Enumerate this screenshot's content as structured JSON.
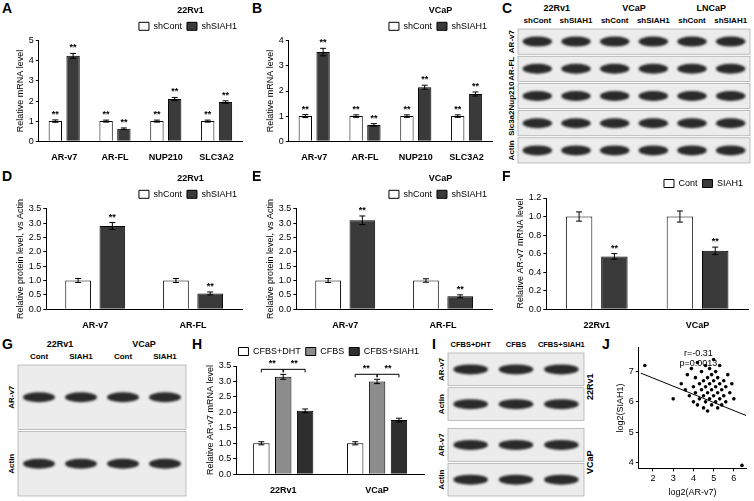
{
  "chart_data": [
    {
      "type": "bar",
      "panel": "A",
      "legend_title": "22Rv1",
      "legend": "top-right",
      "grid": false,
      "categories": [
        "AR-v7",
        "AR-FL",
        "NUP210",
        "SLC3A2"
      ],
      "ylabel": "Relative mRNA level",
      "ylim": [
        0,
        5
      ],
      "yticks": [
        0,
        1,
        2,
        3,
        4,
        5
      ],
      "series": [
        {
          "name": "shCont",
          "color": "#ffffff",
          "values": [
            1,
            1,
            1,
            1
          ],
          "errors": [
            0.06,
            0.05,
            0.05,
            0.05
          ],
          "annotations": [
            "**",
            "**",
            "**",
            "**"
          ]
        },
        {
          "name": "shSIAH1",
          "color": "#3a3a3a",
          "values": [
            4.25,
            0.62,
            2.1,
            1.95
          ],
          "errors": [
            0.12,
            0.04,
            0.08,
            0.06
          ],
          "annotations": [
            "**",
            "**",
            "**",
            "**"
          ]
        }
      ]
    },
    {
      "type": "bar",
      "panel": "B",
      "legend_title": "VCaP",
      "legend": "top-right",
      "grid": false,
      "categories": [
        "AR-v7",
        "AR-FL",
        "NUP210",
        "SLC3A2"
      ],
      "ylabel": "Relative mRNA level",
      "ylim": [
        0,
        4
      ],
      "yticks": [
        0,
        1,
        2,
        3,
        4
      ],
      "series": [
        {
          "name": "shCont",
          "color": "#ffffff",
          "values": [
            1,
            1,
            1,
            1
          ],
          "errors": [
            0.06,
            0.05,
            0.05,
            0.05
          ],
          "annotations": [
            "**",
            "**",
            "**",
            "**"
          ]
        },
        {
          "name": "shSIAH1",
          "color": "#3a3a3a",
          "values": [
            3.55,
            0.65,
            2.15,
            1.88
          ],
          "errors": [
            0.15,
            0.05,
            0.08,
            0.08
          ],
          "annotations": [
            "**",
            "**",
            "**",
            "**"
          ]
        }
      ]
    },
    {
      "type": "bar",
      "panel": "D",
      "legend_title": "22Rv1",
      "legend": "top-right",
      "grid": false,
      "categories": [
        "AR-v7",
        "AR-FL"
      ],
      "ylabel": "Relative protein level, vs Actin",
      "ylim": [
        0,
        3.5
      ],
      "yticks": [
        {
          "value": 0,
          "label": "0.0"
        },
        0.5,
        {
          "value": 1,
          "label": "1.0"
        },
        1.5,
        {
          "value": 2,
          "label": "2.0"
        },
        2.5,
        {
          "value": 3,
          "label": "3.0"
        },
        3.5
      ],
      "series": [
        {
          "name": "shCont",
          "color": "#ffffff",
          "values": [
            1,
            1
          ],
          "errors": [
            0.07,
            0.07
          ]
        },
        {
          "name": "shSIAH1",
          "color": "#3a3a3a",
          "values": [
            2.9,
            0.55
          ],
          "errors": [
            0.12,
            0.05
          ],
          "annotations": [
            "**",
            "**"
          ]
        }
      ]
    },
    {
      "type": "bar",
      "panel": "E",
      "legend_title": "VCaP",
      "legend": "top-right",
      "grid": false,
      "categories": [
        "AR-v7",
        "AR-FL"
      ],
      "ylabel": "Relative protein level, vs Actin",
      "ylim": [
        0,
        3.5
      ],
      "yticks": [
        {
          "value": 0,
          "label": "0.0"
        },
        0.5,
        {
          "value": 1,
          "label": "1.0"
        },
        1.5,
        {
          "value": 2,
          "label": "2.0"
        },
        2.5,
        {
          "value": 3,
          "label": "3.0"
        },
        3.5
      ],
      "series": [
        {
          "name": "shCont",
          "color": "#ffffff",
          "values": [
            1,
            1
          ],
          "errors": [
            0.07,
            0.06
          ]
        },
        {
          "name": "shSIAH1",
          "color": "#3a3a3a",
          "values": [
            3.1,
            0.45
          ],
          "errors": [
            0.15,
            0.05
          ],
          "annotations": [
            "**",
            "**"
          ]
        }
      ]
    },
    {
      "type": "bar",
      "panel": "F",
      "legend": "top-right",
      "grid": false,
      "categories": [
        "22Rv1",
        "VCaP"
      ],
      "ylabel": "Relative AR-v7 mRNA level",
      "ylim": [
        0,
        1.2
      ],
      "yticks": [
        {
          "value": 0,
          "label": "0.0"
        },
        0.2,
        0.4,
        0.6,
        0.8,
        {
          "value": 1,
          "label": "1.0"
        },
        1.2
      ],
      "series": [
        {
          "name": "Cont",
          "color": "#ffffff",
          "values": [
            1,
            1
          ],
          "errors": [
            0.05,
            0.06
          ]
        },
        {
          "name": "SIAH1",
          "color": "#3a3a3a",
          "values": [
            0.57,
            0.63
          ],
          "errors": [
            0.03,
            0.04
          ],
          "annotations": [
            "**",
            "**"
          ]
        }
      ]
    },
    {
      "type": "bar",
      "panel": "H",
      "legend": "top-right",
      "grid": false,
      "categories": [
        "22Rv1",
        "VCaP"
      ],
      "ylabel": "Relative AR-v7 mRNA level",
      "ylim": [
        0,
        3.5
      ],
      "yticks": [
        {
          "value": 0,
          "label": "0.0"
        },
        0.5,
        {
          "value": 1,
          "label": "1.0"
        },
        1.5,
        {
          "value": 2,
          "label": "2.0"
        },
        2.5,
        {
          "value": 3,
          "label": "3.0"
        },
        3.5
      ],
      "series": [
        {
          "name": "CFBS+DHT",
          "color": "#ffffff",
          "values": [
            1,
            1
          ],
          "errors": [
            0.05,
            0.05
          ]
        },
        {
          "name": "CFBS",
          "color": "#8c8c8c",
          "values": [
            3.15,
            3.0
          ],
          "errors": [
            0.08,
            0.07
          ]
        },
        {
          "name": "CFBS+SIAH1",
          "color": "#2e2e2e",
          "values": [
            2.05,
            1.75
          ],
          "errors": [
            0.06,
            0.06
          ]
        }
      ],
      "brackets": [
        {
          "category": "22Rv1",
          "from": "CFBS+DHT",
          "to": "CFBS",
          "label": "**"
        },
        {
          "category": "22Rv1",
          "from": "CFBS",
          "to": "CFBS+SIAH1",
          "label": "**"
        },
        {
          "category": "VCaP",
          "from": "CFBS+DHT",
          "to": "CFBS",
          "label": "**"
        },
        {
          "category": "VCaP",
          "from": "CFBS",
          "to": "CFBS+SIAH1",
          "label": "**"
        }
      ]
    },
    {
      "type": "scatter",
      "panel": "J",
      "grid": false,
      "xlabel": "log2(AR-v7)",
      "ylabel": "log2(SIAH1)",
      "xlim": [
        1.3,
        6.6
      ],
      "xticks": [
        2,
        3,
        4,
        5,
        6
      ],
      "ylim": [
        3.8,
        7.8
      ],
      "yticks": [
        4,
        5,
        6,
        7
      ],
      "annotations": [
        "r=-0.31",
        "p=0.0013"
      ],
      "series": [
        {
          "type": "scatter",
          "color": "#000000",
          "marker": "circle",
          "x": [
            1.6,
            3.0,
            3.4,
            3.6,
            3.7,
            3.8,
            3.9,
            4.0,
            4.0,
            4.1,
            4.1,
            4.2,
            4.2,
            4.3,
            4.3,
            4.4,
            4.4,
            4.5,
            4.5,
            4.5,
            4.6,
            4.6,
            4.6,
            4.7,
            4.7,
            4.7,
            4.8,
            4.8,
            4.8,
            4.9,
            4.9,
            4.9,
            5.0,
            5.0,
            5.0,
            5.1,
            5.1,
            5.1,
            5.2,
            5.2,
            5.2,
            5.3,
            5.3,
            5.3,
            5.4,
            5.4,
            5.5,
            5.5,
            5.6,
            5.6,
            5.7,
            5.8,
            5.9,
            6.0,
            6.4
          ],
          "values": [
            7.2,
            6.1,
            6.6,
            6.4,
            6.9,
            6.2,
            7.1,
            6.5,
            6.0,
            6.8,
            6.3,
            7.3,
            5.9,
            6.6,
            6.1,
            7.0,
            6.4,
            6.7,
            6.2,
            5.8,
            7.2,
            6.5,
            6.0,
            6.8,
            6.3,
            5.7,
            7.1,
            6.6,
            6.1,
            6.9,
            6.4,
            5.9,
            7.4,
            6.7,
            6.2,
            6.5,
            6.0,
            7.0,
            6.8,
            6.3,
            5.8,
            6.6,
            6.1,
            7.2,
            6.4,
            5.9,
            6.7,
            6.2,
            6.5,
            6.0,
            6.9,
            6.3,
            6.6,
            6.1,
            3.9
          ]
        },
        {
          "type": "line",
          "color": "#000000",
          "line_style": "solid",
          "x": [
            1.4,
            6.6
          ],
          "values": [
            6.95,
            5.55
          ]
        }
      ]
    }
  ],
  "blots": [
    {
      "panel": "C",
      "column_groups": [
        {
          "label": "22Rv1",
          "lanes": [
            "shCont",
            "shSIAH1"
          ]
        },
        {
          "label": "VCaP",
          "lanes": [
            "shCont",
            "shSIAH1"
          ]
        },
        {
          "label": "LNCaP",
          "lanes": [
            "shCont",
            "shSIAH1"
          ]
        }
      ],
      "rows": [
        "AR-v7",
        "AR-FL",
        "Nup210",
        "Slc3a2",
        "Actin"
      ]
    },
    {
      "panel": "G",
      "column_groups": [
        {
          "label": "22Rv1",
          "lanes": [
            "Cont",
            "SIAH1"
          ]
        },
        {
          "label": "VCaP",
          "lanes": [
            "Cont",
            "SIAH1"
          ]
        }
      ],
      "rows": [
        "AR-v7",
        "Actin"
      ]
    },
    {
      "panel": "I",
      "lanes": [
        "CFBS+DHT",
        "CFBS",
        "CFBS+SIAH1"
      ],
      "row_groups": [
        {
          "label": "22Rv1",
          "rows": [
            "AR-v7",
            "Actin"
          ]
        },
        {
          "label": "VCaP",
          "rows": [
            "AR-v7",
            "Actin"
          ]
        }
      ]
    }
  ]
}
